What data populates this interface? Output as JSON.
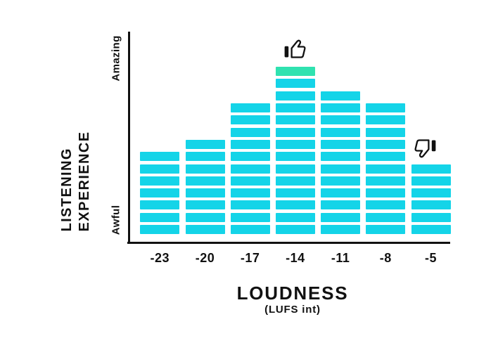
{
  "chart_data": {
    "type": "bar",
    "title": "",
    "xlabel": "LOUDNESS",
    "xlabel_sub": "(LUFS int)",
    "ylabel_line1": "LISTENING",
    "ylabel_line2": "EXPERIENCE",
    "y_top_label": "Amazing",
    "y_bottom_label": "Awful",
    "categories": [
      "-23",
      "-20",
      "-17",
      "-14",
      "-11",
      "-8",
      "-5"
    ],
    "values": [
      7,
      8,
      11,
      14,
      12,
      11,
      6
    ],
    "value_unit": "stacked-meter-segments",
    "highlight": {
      "category": "-14",
      "note": "top segment rendered in green (best listening experience)"
    },
    "annotations": [
      {
        "icon": "thumbs-up-icon",
        "category": "-14"
      },
      {
        "icon": "thumbs-down-icon",
        "category": "-5"
      }
    ],
    "colors": {
      "bar": "#14D4E8",
      "highlight": "#2FE2B0",
      "axis": "#111111",
      "text": "#111111",
      "background": "#FFFFFF"
    },
    "grid": false,
    "legend": null
  }
}
